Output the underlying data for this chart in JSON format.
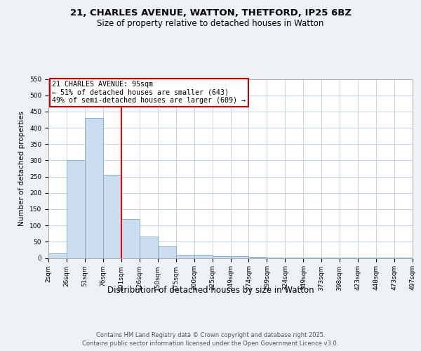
{
  "title_line1": "21, CHARLES AVENUE, WATTON, THETFORD, IP25 6BZ",
  "title_line2": "Size of property relative to detached houses in Watton",
  "xlabel": "Distribution of detached houses by size in Watton",
  "ylabel": "Number of detached properties",
  "bar_values": [
    15,
    300,
    430,
    255,
    120,
    65,
    35,
    10,
    10,
    5,
    5,
    3,
    2,
    2,
    1,
    1,
    1,
    1,
    1,
    1
  ],
  "bin_labels": [
    "2sqm",
    "26sqm",
    "51sqm",
    "76sqm",
    "101sqm",
    "126sqm",
    "150sqm",
    "175sqm",
    "200sqm",
    "225sqm",
    "249sqm",
    "274sqm",
    "299sqm",
    "324sqm",
    "349sqm",
    "373sqm",
    "398sqm",
    "423sqm",
    "448sqm",
    "473sqm",
    "497sqm"
  ],
  "bar_color": "#ccddef",
  "bar_edge_color": "#7fb0d5",
  "red_line_x": 3.5,
  "annotation_title": "21 CHARLES AVENUE: 95sqm",
  "annotation_line1": "← 51% of detached houses are smaller (643)",
  "annotation_line2": "49% of semi-detached houses are larger (609) →",
  "annotation_box_color": "#ffffff",
  "annotation_box_edge": "#cc0000",
  "footer_line1": "Contains HM Land Registry data © Crown copyright and database right 2025.",
  "footer_line2": "Contains public sector information licensed under the Open Government Licence v3.0.",
  "ylim": [
    0,
    550
  ],
  "yticks": [
    0,
    50,
    100,
    150,
    200,
    250,
    300,
    350,
    400,
    450,
    500,
    550
  ],
  "background_color": "#eef2f7",
  "plot_bg_color": "#ffffff",
  "grid_color": "#c5d5e8",
  "title_fontsize": 9.5,
  "subtitle_fontsize": 8.5,
  "ylabel_fontsize": 7.5,
  "xlabel_fontsize": 8.5,
  "tick_fontsize": 6.5,
  "footer_fontsize": 6.0
}
